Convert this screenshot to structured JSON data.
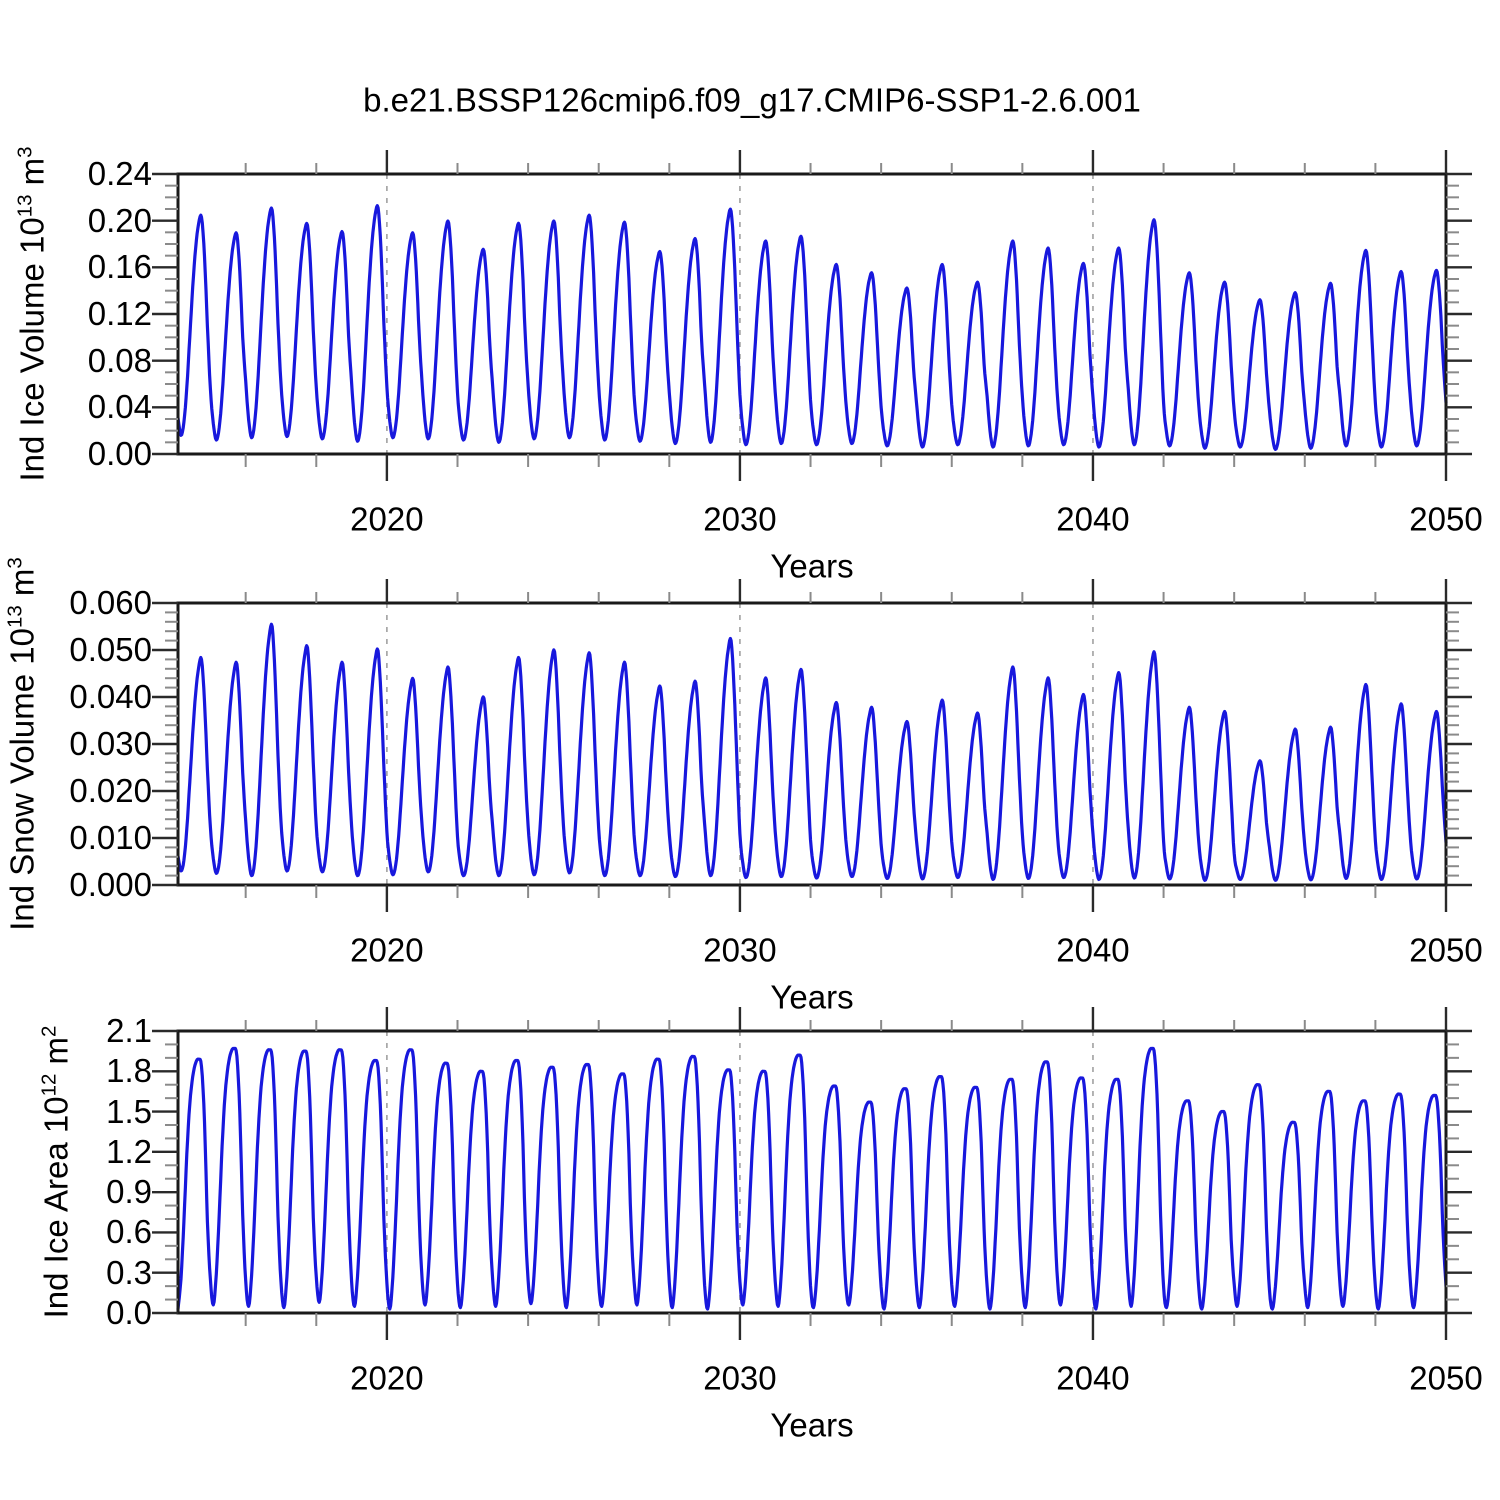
{
  "title": "b.e21.BSSP126cmip6.f09_g17.CMIP6-SSP1-2.6.001",
  "colors": {
    "line": "#1818dd",
    "frame": "#1a1a1a",
    "major_tick": "#2a2a2a",
    "minor_tick": "#8a8a8a",
    "grid": "#9a9a9a",
    "text": "#000000"
  },
  "chart_data": [
    {
      "type": "line",
      "ylabel_text": "Ind Ice Volume 10^13 m^3",
      "ylabel_segments": [
        {
          "t": "Ind Ice Volume 10"
        },
        {
          "t": "13",
          "sup": true
        },
        {
          "t": " m"
        },
        {
          "t": "3",
          "sup": true
        }
      ],
      "xlabel": "Years",
      "x_range": [
        2014.083,
        2050
      ],
      "ylim": [
        0,
        0.24
      ],
      "y_tick_labels": [
        "0.00",
        "0.04",
        "0.08",
        "0.12",
        "0.16",
        "0.20",
        "0.24"
      ],
      "y_major_step": 0.04,
      "y_minor_step": 0.01,
      "x_tick_labels": [
        "2020",
        "2030",
        "2040",
        "2050"
      ],
      "x_major_ticks": [
        2020,
        2030,
        2040,
        2050
      ],
      "x_minor_step": 2,
      "gridline_years": [
        2020,
        2030,
        2040
      ],
      "grid_dashed": true,
      "series": [
        {
          "name": "Ind Ice Volume",
          "color": "#1818dd",
          "annual_cycle": {
            "year_start": 2014,
            "annual_max": [
              0.203,
              0.188,
              0.209,
              0.196,
              0.189,
              0.211,
              0.188,
              0.198,
              0.174,
              0.196,
              0.198,
              0.203,
              0.197,
              0.172,
              0.183,
              0.208,
              0.181,
              0.185,
              0.161,
              0.154,
              0.141,
              0.161,
              0.146,
              0.181,
              0.175,
              0.162,
              0.175,
              0.199,
              0.154,
              0.146,
              0.131,
              0.137,
              0.145,
              0.173,
              0.155,
              0.156
            ],
            "annual_min": [
              0.016,
              0.012,
              0.014,
              0.015,
              0.013,
              0.011,
              0.014,
              0.013,
              0.012,
              0.01,
              0.013,
              0.014,
              0.012,
              0.011,
              0.009,
              0.01,
              0.008,
              0.009,
              0.008,
              0.009,
              0.007,
              0.006,
              0.008,
              0.006,
              0.007,
              0.008,
              0.006,
              0.008,
              0.007,
              0.005,
              0.006,
              0.004,
              0.005,
              0.007,
              0.006,
              0.007
            ],
            "monthly_shape": [
              0.25,
              0.08,
              0.0,
              0.06,
              0.22,
              0.45,
              0.68,
              0.86,
              0.97,
              1.0,
              0.82,
              0.5
            ]
          }
        }
      ]
    },
    {
      "type": "line",
      "ylabel_text": "Ind Snow Volume 10^13 m^3",
      "ylabel_segments": [
        {
          "t": "Ind Snow Volume 10"
        },
        {
          "t": "13",
          "sup": true
        },
        {
          "t": " m"
        },
        {
          "t": "3",
          "sup": true
        }
      ],
      "xlabel": "Years",
      "x_range": [
        2014.083,
        2050
      ],
      "ylim": [
        0,
        0.06
      ],
      "y_tick_labels": [
        "0.000",
        "0.010",
        "0.020",
        "0.030",
        "0.040",
        "0.050",
        "0.060"
      ],
      "y_major_step": 0.01,
      "y_minor_step": 0.002,
      "x_tick_labels": [
        "2020",
        "2030",
        "2040",
        "2050"
      ],
      "x_major_ticks": [
        2020,
        2030,
        2040,
        2050
      ],
      "x_minor_step": 2,
      "gridline_years": [
        2020,
        2030,
        2040
      ],
      "grid_dashed": true,
      "series": [
        {
          "name": "Ind Snow Volume",
          "color": "#1818dd",
          "annual_cycle": {
            "year_start": 2014,
            "annual_max": [
              0.048,
              0.047,
              0.055,
              0.0505,
              0.047,
              0.0498,
              0.0436,
              0.046,
              0.0397,
              0.048,
              0.0496,
              0.049,
              0.047,
              0.042,
              0.043,
              0.052,
              0.0437,
              0.0455,
              0.0385,
              0.0375,
              0.0345,
              0.039,
              0.0363,
              0.046,
              0.0437,
              0.0402,
              0.0448,
              0.0492,
              0.0375,
              0.0366,
              0.0262,
              0.0329,
              0.0333,
              0.0423,
              0.0382,
              0.0366
            ],
            "annual_min": [
              0.003,
              0.0025,
              0.002,
              0.003,
              0.0028,
              0.002,
              0.0022,
              0.0028,
              0.002,
              0.002,
              0.0022,
              0.0026,
              0.002,
              0.002,
              0.0018,
              0.002,
              0.0016,
              0.0018,
              0.0015,
              0.0018,
              0.0014,
              0.0013,
              0.0016,
              0.0012,
              0.0014,
              0.0016,
              0.0012,
              0.0015,
              0.0013,
              0.001,
              0.0012,
              0.001,
              0.0011,
              0.0014,
              0.0012,
              0.0013
            ],
            "monthly_shape": [
              0.22,
              0.07,
              0.0,
              0.05,
              0.2,
              0.42,
              0.65,
              0.84,
              0.96,
              1.0,
              0.8,
              0.48
            ]
          }
        }
      ]
    },
    {
      "type": "line",
      "ylabel_text": "Ind Ice Area 10^12 m^2",
      "ylabel_segments": [
        {
          "t": "Ind Ice Area 10"
        },
        {
          "t": "12",
          "sup": true
        },
        {
          "t": " m"
        },
        {
          "t": "2",
          "sup": true
        }
      ],
      "xlabel": "Years",
      "x_range": [
        2014.083,
        2050
      ],
      "ylim": [
        0,
        2.1
      ],
      "y_tick_labels": [
        "0.0",
        "0.3",
        "0.6",
        "0.9",
        "1.2",
        "1.5",
        "1.8",
        "2.1"
      ],
      "y_major_step": 0.3,
      "y_minor_step": 0.1,
      "x_tick_labels": [
        "2020",
        "2030",
        "2040",
        "2050"
      ],
      "x_major_ticks": [
        2020,
        2030,
        2040,
        2050
      ],
      "x_minor_step": 2,
      "gridline_years": [
        2020,
        2030,
        2040
      ],
      "grid_dashed": true,
      "series": [
        {
          "name": "Ind Ice Area",
          "color": "#1818dd",
          "annual_cycle": {
            "year_start": 2014,
            "annual_max": [
              1.89,
              1.97,
              1.96,
              1.95,
              1.96,
              1.88,
              1.96,
              1.86,
              1.8,
              1.88,
              1.83,
              1.85,
              1.78,
              1.89,
              1.91,
              1.81,
              1.8,
              1.92,
              1.69,
              1.57,
              1.67,
              1.76,
              1.68,
              1.74,
              1.87,
              1.75,
              1.74,
              1.97,
              1.58,
              1.5,
              1.7,
              1.42,
              1.65,
              1.58,
              1.63,
              1.62
            ],
            "annual_min": [
              0.03,
              0.06,
              0.05,
              0.04,
              0.08,
              0.05,
              0.03,
              0.06,
              0.04,
              0.05,
              0.07,
              0.04,
              0.05,
              0.06,
              0.04,
              0.03,
              0.06,
              0.05,
              0.04,
              0.06,
              0.03,
              0.04,
              0.05,
              0.03,
              0.04,
              0.06,
              0.03,
              0.05,
              0.04,
              0.03,
              0.05,
              0.03,
              0.04,
              0.05,
              0.03,
              0.04
            ],
            "monthly_shape": [
              0.1,
              0.0,
              0.12,
              0.35,
              0.62,
              0.82,
              0.93,
              0.985,
              1.0,
              0.97,
              0.75,
              0.35
            ]
          }
        }
      ]
    }
  ]
}
